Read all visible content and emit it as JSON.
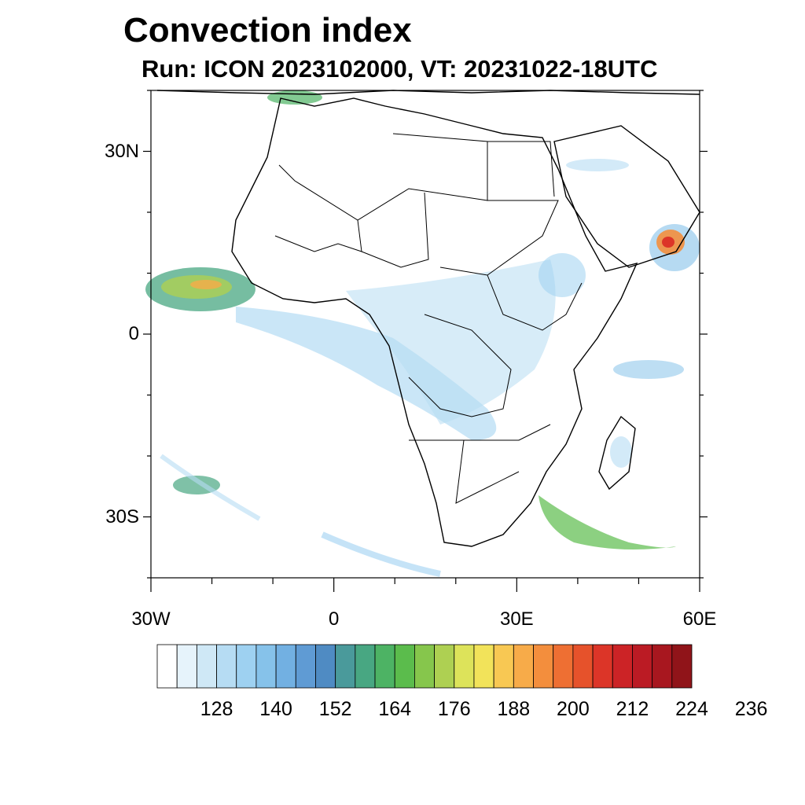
{
  "title": "Convection index",
  "subtitle": "Run: ICON 2023102000,  VT: 20231022-18UTC",
  "map": {
    "lon_min": -30,
    "lon_max": 60,
    "lat_min": -40,
    "lat_max": 40,
    "lat_ticks": [
      {
        "value": 30,
        "label": "30N"
      },
      {
        "value": 0,
        "label": "0"
      },
      {
        "value": -30,
        "label": "30S"
      }
    ],
    "lon_ticks": [
      {
        "value": -30,
        "label": "30W"
      },
      {
        "value": 0,
        "label": "0"
      },
      {
        "value": 30,
        "label": "30E"
      },
      {
        "value": 60,
        "label": "60E"
      }
    ]
  },
  "colorbar": {
    "colors": [
      "#ffffff",
      "#e6f3fb",
      "#cfe8f6",
      "#b6dcf3",
      "#9ed1f1",
      "#86c2ea",
      "#72b0e2",
      "#5f9bd4",
      "#4f8bc3",
      "#4a9a9b",
      "#48a782",
      "#4db364",
      "#5bbc4c",
      "#86c64c",
      "#aed052",
      "#dde35a",
      "#f2e35a",
      "#f8c853",
      "#f7ab49",
      "#f38e3d",
      "#ee6f33",
      "#e6522b",
      "#dc3528",
      "#cc2326",
      "#bb1b24",
      "#a8171f",
      "#901419"
    ],
    "labels": [
      "128",
      "140",
      "152",
      "164",
      "176",
      "188",
      "200",
      "212",
      "224",
      "236"
    ]
  }
}
